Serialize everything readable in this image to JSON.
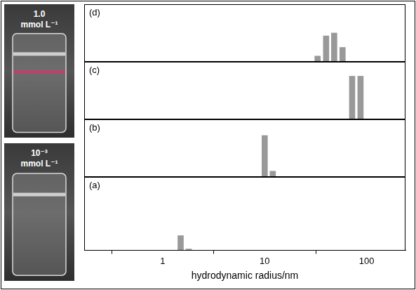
{
  "annotations": [
    "1.0 mmol L⁻¹",
    "10⁻³ mmol L⁻¹"
  ],
  "chart_data": [
    {
      "type": "bar",
      "title": "(d)",
      "x": [
        33,
        40,
        48,
        58
      ],
      "values": [
        0.1,
        0.45,
        0.5,
        0.25
      ],
      "color": "#999999",
      "xlim": [
        0.17,
        240
      ],
      "ylim": [
        0,
        1
      ],
      "log": "x",
      "tick_labels": false
    },
    {
      "type": "bar",
      "title": "(c)",
      "x": [
        72,
        87
      ],
      "values": [
        0.75,
        0.75
      ],
      "color": "#999999",
      "xlim": [
        0.17,
        240
      ],
      "ylim": [
        0,
        1
      ],
      "log": "x",
      "tick_labels": false
    },
    {
      "type": "bar",
      "title": "(b)",
      "x": [
        10,
        12
      ],
      "values": [
        0.72,
        0.1
      ],
      "color": "#999999",
      "xlim": [
        0.17,
        240
      ],
      "ylim": [
        0,
        1
      ],
      "log": "x",
      "tick_labels": false
    },
    {
      "type": "bar",
      "title": "(a)",
      "x": [
        1.5,
        1.8
      ],
      "values": [
        0.2,
        0.02
      ],
      "color": "#999999",
      "xlim": [
        0.17,
        240
      ],
      "ylim": [
        0,
        1
      ],
      "log": "x",
      "tick_labels": "x",
      "xticks": [
        1,
        10,
        100
      ],
      "xlabel": "hydrodynamic radius/nm"
    }
  ]
}
